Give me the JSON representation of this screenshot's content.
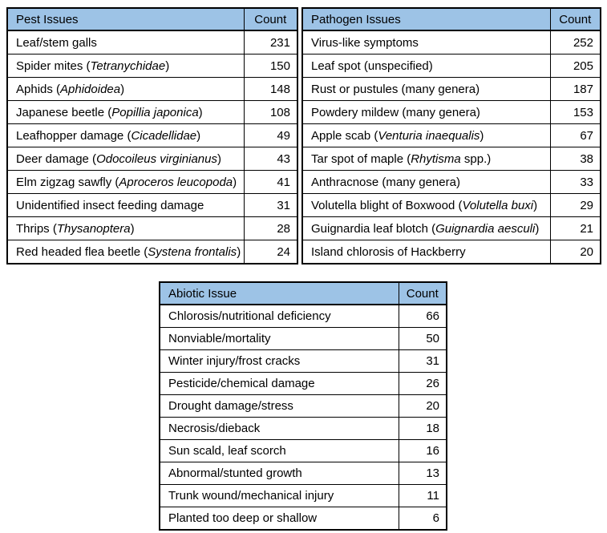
{
  "style": {
    "header_bg": "#9DC3E6",
    "border_color": "#000000",
    "text_color": "#000000",
    "page_bg": "#FFFFFF"
  },
  "tables": [
    {
      "name": "pest-issues",
      "title": "Pest Issues",
      "count_label": "Count",
      "rows": [
        {
          "label": [
            {
              "text": "Leaf/stem galls"
            }
          ],
          "count": 231
        },
        {
          "label": [
            {
              "text": "Spider mites ("
            },
            {
              "text": "Tetranychidae",
              "italic": true
            },
            {
              "text": ")"
            }
          ],
          "count": 150
        },
        {
          "label": [
            {
              "text": "Aphids ("
            },
            {
              "text": "Aphidoidea",
              "italic": true
            },
            {
              "text": ")"
            }
          ],
          "count": 148
        },
        {
          "label": [
            {
              "text": "Japanese beetle ("
            },
            {
              "text": "Popillia japonica",
              "italic": true
            },
            {
              "text": ")"
            }
          ],
          "count": 108
        },
        {
          "label": [
            {
              "text": "Leafhopper damage ("
            },
            {
              "text": "Cicadellidae",
              "italic": true
            },
            {
              "text": ")"
            }
          ],
          "count": 49
        },
        {
          "label": [
            {
              "text": "Deer damage ("
            },
            {
              "text": "Odocoileus virginianus",
              "italic": true
            },
            {
              "text": ")"
            }
          ],
          "count": 43
        },
        {
          "label": [
            {
              "text": "Elm zigzag sawfly ("
            },
            {
              "text": "Aproceros leucopoda",
              "italic": true
            },
            {
              "text": ")"
            }
          ],
          "count": 41
        },
        {
          "label": [
            {
              "text": "Unidentified insect feeding damage"
            }
          ],
          "count": 31
        },
        {
          "label": [
            {
              "text": "Thrips ("
            },
            {
              "text": "Thysanoptera",
              "italic": true
            },
            {
              "text": ")"
            }
          ],
          "count": 28
        },
        {
          "label": [
            {
              "text": "Red headed flea beetle ("
            },
            {
              "text": "Systena frontalis",
              "italic": true
            },
            {
              "text": ")"
            }
          ],
          "count": 24
        }
      ]
    },
    {
      "name": "pathogen-issues",
      "title": "Pathogen Issues",
      "count_label": "Count",
      "rows": [
        {
          "label": [
            {
              "text": "Virus-like symptoms"
            }
          ],
          "count": 252
        },
        {
          "label": [
            {
              "text": "Leaf spot (unspecified)"
            }
          ],
          "count": 205
        },
        {
          "label": [
            {
              "text": "Rust or pustules (many genera)"
            }
          ],
          "count": 187
        },
        {
          "label": [
            {
              "text": "Powdery mildew (many genera)"
            }
          ],
          "count": 153
        },
        {
          "label": [
            {
              "text": "Apple scab ("
            },
            {
              "text": "Venturia inaequalis",
              "italic": true
            },
            {
              "text": ")"
            }
          ],
          "count": 67
        },
        {
          "label": [
            {
              "text": "Tar spot of maple ("
            },
            {
              "text": "Rhytisma",
              "italic": true
            },
            {
              "text": " spp.)"
            }
          ],
          "count": 38
        },
        {
          "label": [
            {
              "text": "Anthracnose (many genera)"
            }
          ],
          "count": 33
        },
        {
          "label": [
            {
              "text": "Volutella blight of Boxwood ("
            },
            {
              "text": "Volutella buxi",
              "italic": true
            },
            {
              "text": ")"
            }
          ],
          "count": 29
        },
        {
          "label": [
            {
              "text": "Guignardia leaf blotch ("
            },
            {
              "text": "Guignardia aesculi",
              "italic": true
            },
            {
              "text": ")"
            }
          ],
          "count": 21
        },
        {
          "label": [
            {
              "text": "Island chlorosis of Hackberry"
            }
          ],
          "count": 20
        }
      ]
    },
    {
      "name": "abiotic-issues",
      "title": "Abiotic Issue",
      "count_label": "Count",
      "rows": [
        {
          "label": [
            {
              "text": "Chlorosis/nutritional deficiency"
            }
          ],
          "count": 66
        },
        {
          "label": [
            {
              "text": "Nonviable/mortality"
            }
          ],
          "count": 50
        },
        {
          "label": [
            {
              "text": "Winter injury/frost cracks"
            }
          ],
          "count": 31
        },
        {
          "label": [
            {
              "text": "Pesticide/chemical damage"
            }
          ],
          "count": 26
        },
        {
          "label": [
            {
              "text": "Drought damage/stress"
            }
          ],
          "count": 20
        },
        {
          "label": [
            {
              "text": "Necrosis/dieback"
            }
          ],
          "count": 18
        },
        {
          "label": [
            {
              "text": "Sun scald, leaf scorch"
            }
          ],
          "count": 16
        },
        {
          "label": [
            {
              "text": "Abnormal/stunted growth"
            }
          ],
          "count": 13
        },
        {
          "label": [
            {
              "text": "Trunk wound/mechanical injury"
            }
          ],
          "count": 11
        },
        {
          "label": [
            {
              "text": "Planted too deep or shallow"
            }
          ],
          "count": 6
        }
      ]
    }
  ]
}
